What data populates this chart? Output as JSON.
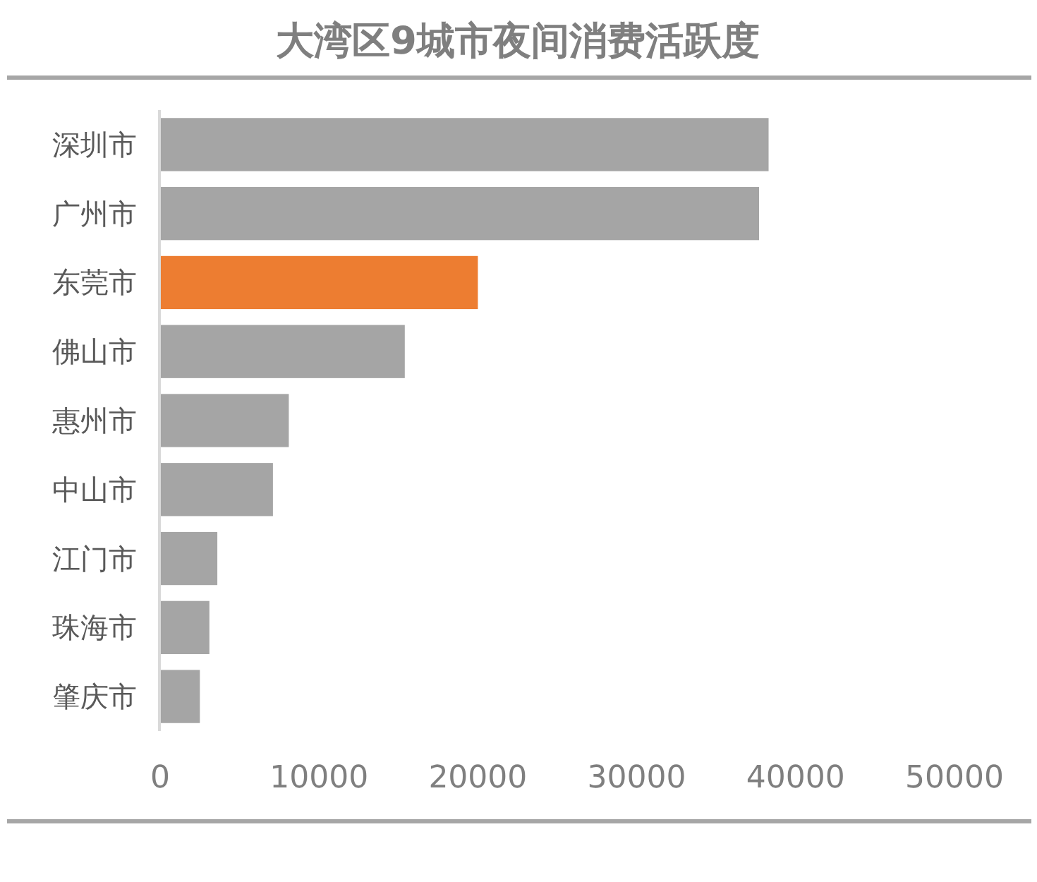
{
  "chart_data": {
    "type": "bar",
    "orientation": "horizontal",
    "title": "大湾区9城市夜间消费活跃度",
    "categories": [
      "深圳市",
      "广州市",
      "东莞市",
      "佛山市",
      "惠州市",
      "中山市",
      "江门市",
      "珠海市",
      "肇庆市"
    ],
    "values": [
      38300,
      37700,
      20000,
      15400,
      8100,
      7100,
      3600,
      3100,
      2500
    ],
    "colors": [
      "#a5a5a5",
      "#a5a5a5",
      "#ed7d31",
      "#a5a5a5",
      "#a5a5a5",
      "#a5a5a5",
      "#a5a5a5",
      "#a5a5a5",
      "#a5a5a5"
    ],
    "xlim": [
      0,
      50000
    ],
    "xticks": [
      0,
      10000,
      20000,
      30000,
      40000,
      50000
    ]
  }
}
